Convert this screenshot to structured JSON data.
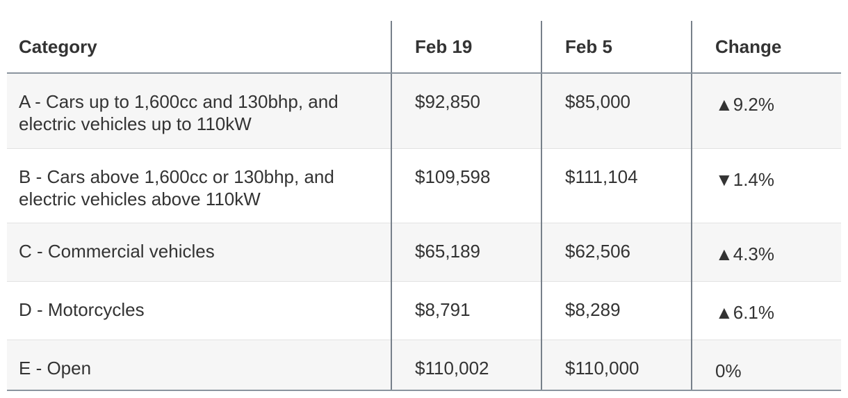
{
  "table": {
    "columns": [
      "Category",
      "Feb 19",
      "Feb 5",
      "Change"
    ],
    "rows": [
      [
        "A - Cars up to 1,600cc and 130bhp, and electric vehicles up to 110kW",
        "$92,850",
        "$85,000",
        "▲9.2%"
      ],
      [
        "B - Cars above 1,600cc or 130bhp, and electric vehicles above 110kW",
        "$109,598",
        "$111,104",
        "▼1.4%"
      ],
      [
        "C - Commercial vehicles",
        "$65,189",
        "$62,506",
        "▲4.3%"
      ],
      [
        "D - Motorcycles",
        "$8,791",
        "$8,289",
        "▲6.1%"
      ],
      [
        "E - Open",
        "$110,002",
        "$110,000",
        "0%"
      ]
    ]
  }
}
